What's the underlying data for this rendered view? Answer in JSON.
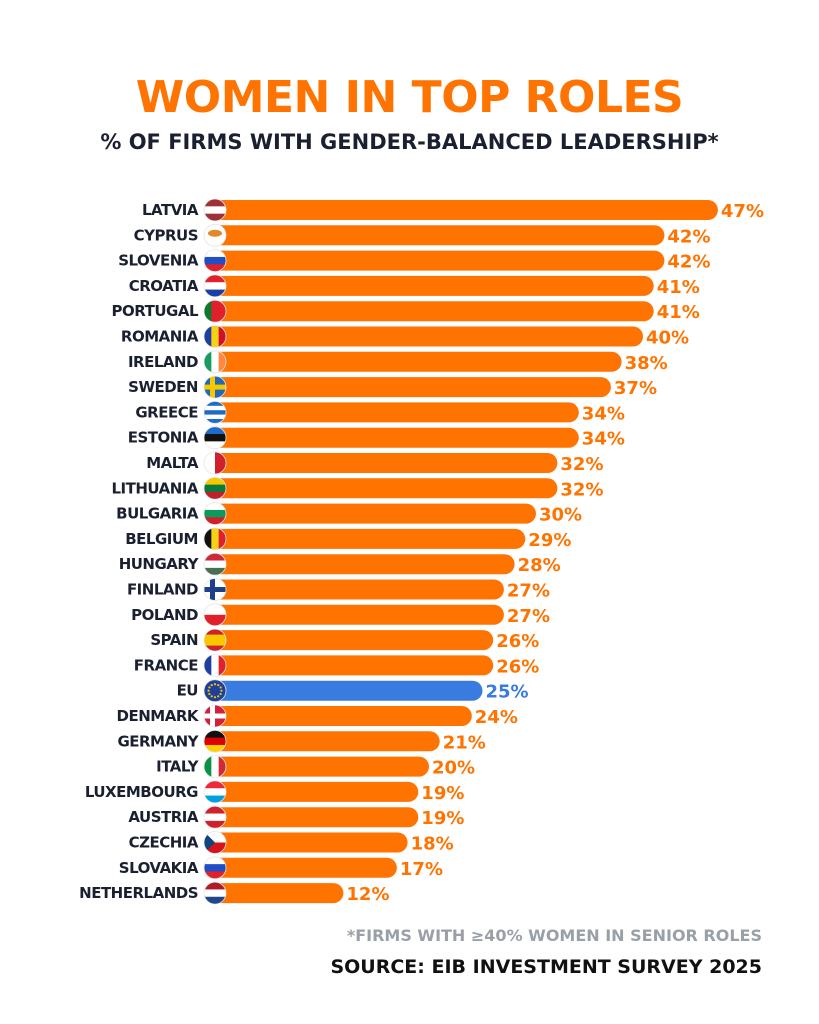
{
  "chart_data": {
    "type": "bar",
    "orientation": "horizontal",
    "title": "WOMEN IN TOP ROLES",
    "subtitle": "% OF FIRMS WITH GENDER-BALANCED LEADERSHIP*",
    "footnote": "*FIRMS WITH ≥40% WOMEN IN SENIOR ROLES",
    "source": "SOURCE: EIB INVESTMENT SURVEY 2025",
    "value_suffix": "%",
    "xlim": [
      0,
      47
    ],
    "grid": false,
    "colors": {
      "bar": "#FF7300",
      "highlight": "#3A7BE0",
      "label": "#1b2030"
    },
    "categories": [
      "LATVIA",
      "CYPRUS",
      "SLOVENIA",
      "CROATIA",
      "PORTUGAL",
      "ROMANIA",
      "IRELAND",
      "SWEDEN",
      "GREECE",
      "ESTONIA",
      "MALTA",
      "LITHUANIA",
      "BULGARIA",
      "BELGIUM",
      "HUNGARY",
      "FINLAND",
      "POLAND",
      "SPAIN",
      "FRANCE",
      "EU",
      "DENMARK",
      "GERMANY",
      "ITALY",
      "LUXEMBOURG",
      "AUSTRIA",
      "CZECHIA",
      "SLOVAKIA",
      "NETHERLANDS"
    ],
    "values": [
      47,
      42,
      42,
      41,
      41,
      40,
      38,
      37,
      34,
      34,
      32,
      32,
      30,
      29,
      28,
      27,
      27,
      26,
      26,
      25,
      24,
      21,
      20,
      19,
      19,
      18,
      17,
      12
    ],
    "highlight": "EU",
    "flags": [
      {
        "dir": "h",
        "s": [
          "#9E3039",
          "#ffffff",
          "#9E3039"
        ]
      },
      {
        "dir": "h",
        "s": [
          "#ffffff"
        ],
        "blob": "#E08A2C"
      },
      {
        "dir": "h",
        "s": [
          "#ffffff",
          "#1F4FC7",
          "#E0202A"
        ]
      },
      {
        "dir": "h",
        "s": [
          "#E0202A",
          "#ffffff",
          "#1F3FA0"
        ]
      },
      {
        "dir": "v",
        "s": [
          "#0A7A2E",
          "#E0202A",
          "#E0202A"
        ]
      },
      {
        "dir": "v",
        "s": [
          "#1F3FA0",
          "#F7D116",
          "#D0102A"
        ]
      },
      {
        "dir": "v",
        "s": [
          "#169B62",
          "#ffffff",
          "#FF883E"
        ]
      },
      {
        "cross": [
          "#1F6BB5",
          "#F7C800"
        ]
      },
      {
        "dir": "h",
        "s": [
          "#1F6BC7",
          "#ffffff",
          "#1F6BC7",
          "#ffffff",
          "#1F6BC7"
        ]
      },
      {
        "dir": "h",
        "s": [
          "#1F6BC7",
          "#111111",
          "#ffffff"
        ]
      },
      {
        "dir": "v",
        "s": [
          "#ffffff",
          "#D0202A"
        ]
      },
      {
        "dir": "h",
        "s": [
          "#F7C800",
          "#0A7A3E",
          "#C0202A"
        ]
      },
      {
        "dir": "h",
        "s": [
          "#ffffff",
          "#0A9A5E",
          "#D0202A"
        ]
      },
      {
        "dir": "v",
        "s": [
          "#111111",
          "#F7D116",
          "#E0202A"
        ]
      },
      {
        "dir": "h",
        "s": [
          "#CE2939",
          "#ffffff",
          "#477050"
        ]
      },
      {
        "cross": [
          "#ffffff",
          "#1F3F8A"
        ]
      },
      {
        "dir": "h",
        "s": [
          "#ffffff",
          "#E0202A"
        ]
      },
      {
        "dir": "h",
        "s": [
          "#D0202A",
          "#F7C800",
          "#F7C800",
          "#D0202A"
        ]
      },
      {
        "dir": "v",
        "s": [
          "#1F3FA0",
          "#ffffff",
          "#E0202A"
        ]
      },
      {
        "dir": "h",
        "s": [
          "#1F3F9A"
        ],
        "stars": "#F7C800"
      },
      {
        "cross": [
          "#D0203A",
          "#ffffff"
        ]
      },
      {
        "dir": "h",
        "s": [
          "#111111",
          "#DD0000",
          "#FFCE00"
        ]
      },
      {
        "dir": "v",
        "s": [
          "#0A9246",
          "#ffffff",
          "#CE2B37"
        ]
      },
      {
        "dir": "h",
        "s": [
          "#ED2939",
          "#ffffff",
          "#00A1DE"
        ]
      },
      {
        "dir": "h",
        "s": [
          "#D0202A",
          "#ffffff",
          "#D0202A"
        ]
      },
      {
        "dir": "h",
        "s": [
          "#ffffff",
          "#D7141A"
        ],
        "tri": "#11457E"
      },
      {
        "dir": "h",
        "s": [
          "#ffffff",
          "#1F4FC7",
          "#E0202A"
        ]
      },
      {
        "dir": "h",
        "s": [
          "#AE1C28",
          "#ffffff",
          "#21468B"
        ]
      }
    ]
  }
}
